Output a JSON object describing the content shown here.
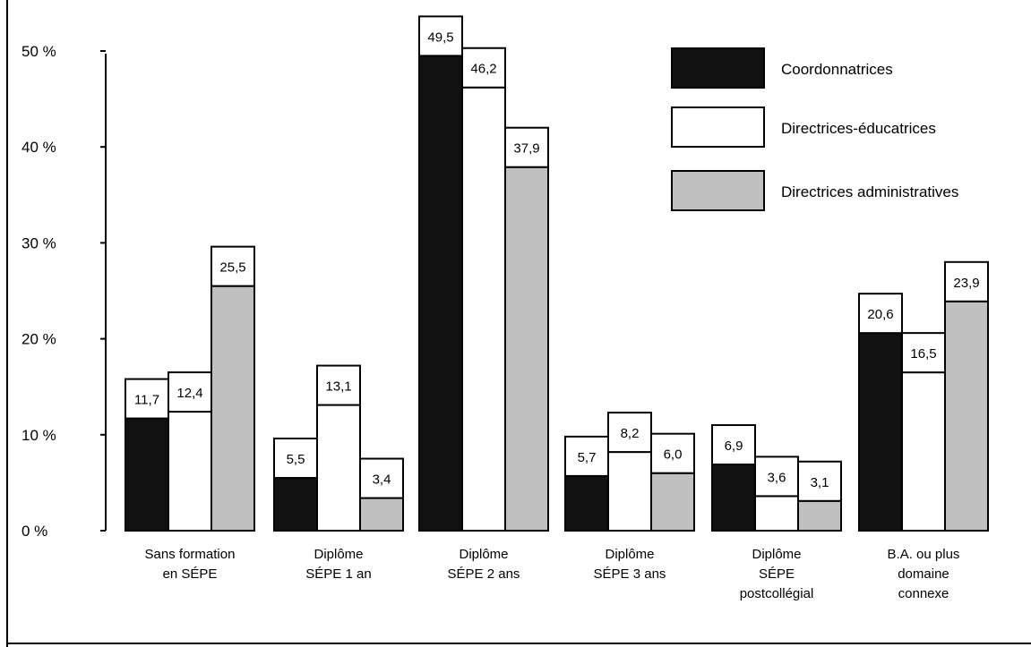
{
  "chart_data": {
    "type": "bar",
    "categories": [
      [
        "Sans formation",
        "en SÉPE"
      ],
      [
        "Diplôme",
        "SÉPE  1 an"
      ],
      [
        "Diplôme",
        "SÉPE  2 ans"
      ],
      [
        "Diplôme",
        "SÉPE  3 ans"
      ],
      [
        "Diplôme",
        "SÉPE",
        "postcollégial"
      ],
      [
        "B.A. ou plus",
        "domaine",
        "connexe"
      ]
    ],
    "series": [
      {
        "name": "Coordonnatrices",
        "color": "#111111",
        "values": [
          11.7,
          5.5,
          49.5,
          5.7,
          6.9,
          20.6
        ],
        "labels": [
          "11,7",
          "5,5",
          "49,5",
          "5,7",
          "6,9",
          "20,6"
        ]
      },
      {
        "name": "Directrices-éducatrices",
        "color": "#ffffff",
        "values": [
          12.4,
          13.1,
          46.2,
          8.2,
          3.6,
          16.5
        ],
        "labels": [
          "12,4",
          "13,1",
          "46,2",
          "8,2",
          "3,6",
          "16,5"
        ]
      },
      {
        "name": "Directrices administratives",
        "color": "#c0c0c0",
        "values": [
          25.5,
          3.4,
          37.9,
          6.0,
          3.1,
          23.9
        ],
        "labels": [
          "25,5",
          "3,4",
          "37,9",
          "6,0",
          "3,1",
          "23,9"
        ]
      }
    ],
    "y_ticks": [
      0,
      10,
      20,
      30,
      40,
      50
    ],
    "y_tick_labels": [
      "0 %",
      "10 %",
      "20 %",
      "30 %",
      "40 %",
      "50 %"
    ],
    "ylim": [
      0,
      50
    ],
    "legend_position": "top-right",
    "grid": false
  }
}
